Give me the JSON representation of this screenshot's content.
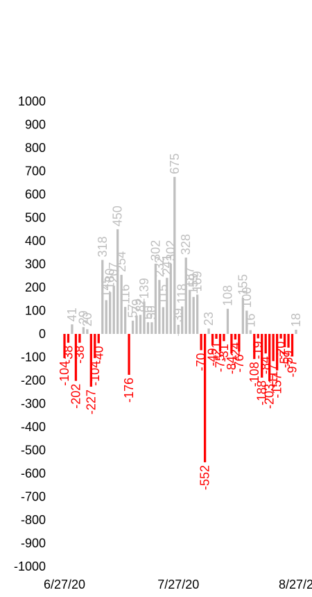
{
  "chart_data": {
    "type": "bar",
    "title": "",
    "xlabel": "",
    "ylabel": "",
    "ylim": [
      -1000,
      1000
    ],
    "yticks": [
      1000,
      900,
      800,
      700,
      600,
      500,
      400,
      300,
      200,
      100,
      0,
      -100,
      -200,
      -300,
      -400,
      -500,
      -600,
      -700,
      -800,
      -900,
      -1000
    ],
    "x_tick_labels": [
      "6/27/20",
      "7/27/20",
      "8/27/2"
    ],
    "grid": false,
    "legend": "none",
    "colors": {
      "positive": "#bfbfbf",
      "negative": "#ff0000"
    },
    "series": [
      {
        "dates": [
          "6/27/20",
          "6/28/20",
          "6/29/20",
          "6/30/20",
          "7/1/20",
          "7/2/20",
          "7/3/20",
          "7/4/20",
          "7/5/20",
          "7/6/20",
          "7/7/20",
          "7/8/20",
          "7/9/20",
          "7/10/20",
          "7/11/20",
          "7/12/20",
          "7/13/20",
          "7/14/20",
          "7/15/20",
          "7/16/20",
          "7/17/20",
          "7/18/20",
          "7/19/20",
          "7/20/20",
          "7/21/20",
          "7/22/20",
          "7/23/20",
          "7/24/20",
          "7/25/20",
          "7/26/20",
          "7/27/20",
          "7/28/20",
          "7/29/20",
          "7/30/20",
          "7/31/20",
          "8/1/20",
          "8/2/20",
          "8/3/20",
          "8/4/20",
          "8/5/20",
          "8/6/20",
          "8/7/20",
          "8/8/20",
          "8/9/20",
          "8/10/20",
          "8/11/20",
          "8/12/20",
          "8/13/20",
          "8/14/20",
          "8/15/20",
          "8/16/20",
          "8/17/20",
          "8/18/20",
          "8/19/20",
          "8/20/20",
          "8/21/20",
          "8/22/20",
          "8/23/20",
          "8/24/20",
          "8/25/20",
          "8/26/20",
          "8/27/20"
        ],
        "values": [
          -104,
          -38,
          41,
          -202,
          -38,
          29,
          20,
          -227,
          -104,
          -40,
          318,
          145,
          180,
          207,
          450,
          254,
          116,
          -176,
          57,
          79,
          82,
          139,
          50,
          50,
          302,
          232,
          115,
          241,
          302,
          675,
          39,
          118,
          328,
          187,
          159,
          169,
          -70,
          -552,
          23,
          -49,
          -21,
          -75,
          -31,
          108,
          -84,
          -24,
          -76,
          155,
          100,
          16,
          -108,
          -19,
          -188,
          -84,
          -203,
          -117,
          -157,
          -20,
          -57,
          -59,
          -97,
          18
        ]
      }
    ]
  }
}
